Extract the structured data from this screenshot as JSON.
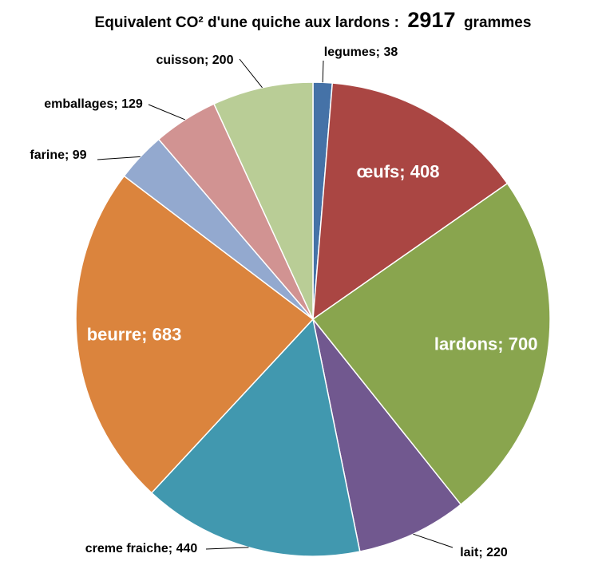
{
  "chart_data": {
    "type": "pie",
    "title": "Equivalent CO² d'une quiche aux lardons :",
    "title_total": "2917",
    "title_unit": "grammes",
    "label_separator": "; ",
    "slices": [
      {
        "label": "legumes",
        "value": 38,
        "color": "#4572A7"
      },
      {
        "label": "œufs",
        "value": 408,
        "color": "#AA4643"
      },
      {
        "label": "lardons",
        "value": 700,
        "color": "#89A54E"
      },
      {
        "label": "lait",
        "value": 220,
        "color": "#71588F"
      },
      {
        "label": "creme fraiche",
        "value": 440,
        "color": "#4198AF"
      },
      {
        "label": "beurre",
        "value": 683,
        "color": "#DB843D"
      },
      {
        "label": "farine",
        "value": 99,
        "color": "#93A9CF"
      },
      {
        "label": "emballages",
        "value": 129,
        "color": "#D19392"
      },
      {
        "label": "cuisson",
        "value": 200,
        "color": "#B9CD96"
      }
    ]
  }
}
